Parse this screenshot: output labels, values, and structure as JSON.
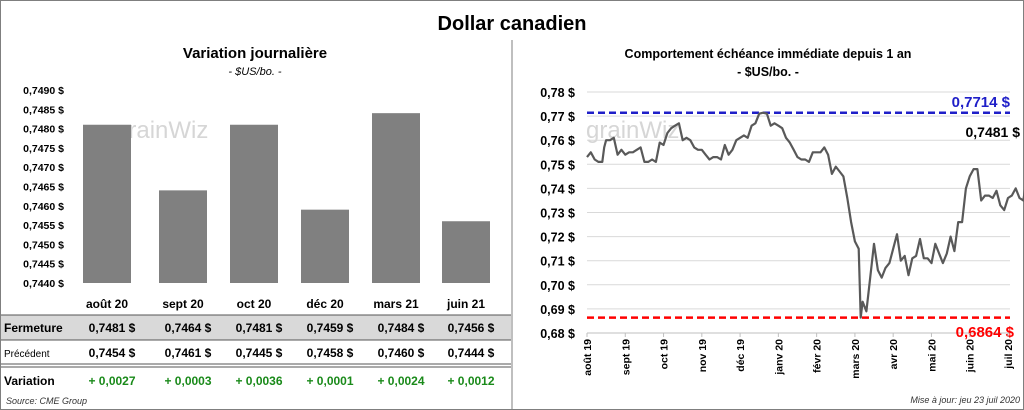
{
  "title": "Dollar canadien",
  "watermark": "grainWiz",
  "colors": {
    "bar": "#808080",
    "line": "#595959",
    "high": "#1f1fc8",
    "low": "#ff0000",
    "positive": "#1a8a1a",
    "table_band": "#d9d9d9"
  },
  "chart_data": [
    {
      "type": "bar",
      "title": "Variation  journalière",
      "subtitle": "- $US/bo. -",
      "ylim": [
        0.744,
        0.749
      ],
      "yticks": [
        "0,7440 $",
        "0,7445 $",
        "0,7450 $",
        "0,7455 $",
        "0,7460 $",
        "0,7465 $",
        "0,7470 $",
        "0,7475 $",
        "0,7480 $",
        "0,7485 $",
        "0,7490 $"
      ],
      "categories": [
        "août 20",
        "sept 20",
        "oct 20",
        "déc 20",
        "mars 21",
        "juin 21"
      ],
      "values": [
        0.7481,
        0.7464,
        0.7481,
        0.7459,
        0.7484,
        0.7456
      ]
    },
    {
      "type": "line",
      "title": "Comportement échéance immédiate depuis 1 an",
      "subtitle": "- $US/bo. -",
      "ylim": [
        0.68,
        0.78
      ],
      "yticks": [
        "0,68 $",
        "0,69 $",
        "0,70 $",
        "0,71 $",
        "0,72 $",
        "0,73 $",
        "0,74 $",
        "0,75 $",
        "0,76 $",
        "0,77 $",
        "0,78 $"
      ],
      "xticks": [
        "août 19",
        "sept 19",
        "oct 19",
        "nov 19",
        "déc 19",
        "janv 20",
        "févr 20",
        "mars 20",
        "avr 20",
        "mai 20",
        "juin 20",
        "juil 20"
      ],
      "x_unit": "months since août 19",
      "series": [
        {
          "name": "Dollar canadien",
          "points": [
            [
              0,
              0.753
            ],
            [
              0.1,
              0.755
            ],
            [
              0.2,
              0.752
            ],
            [
              0.3,
              0.751
            ],
            [
              0.4,
              0.751
            ],
            [
              0.45,
              0.757
            ],
            [
              0.5,
              0.76
            ],
            [
              0.6,
              0.76
            ],
            [
              0.7,
              0.761
            ],
            [
              0.8,
              0.754
            ],
            [
              0.9,
              0.756
            ],
            [
              1.0,
              0.754
            ],
            [
              1.1,
              0.755
            ],
            [
              1.2,
              0.755
            ],
            [
              1.3,
              0.756
            ],
            [
              1.4,
              0.757
            ],
            [
              1.5,
              0.751
            ],
            [
              1.6,
              0.751
            ],
            [
              1.7,
              0.752
            ],
            [
              1.8,
              0.751
            ],
            [
              1.9,
              0.759
            ],
            [
              2.0,
              0.758
            ],
            [
              2.1,
              0.763
            ],
            [
              2.2,
              0.765
            ],
            [
              2.3,
              0.766
            ],
            [
              2.4,
              0.767
            ],
            [
              2.5,
              0.76
            ],
            [
              2.6,
              0.761
            ],
            [
              2.7,
              0.76
            ],
            [
              2.8,
              0.757
            ],
            [
              2.9,
              0.756
            ],
            [
              3.0,
              0.756
            ],
            [
              3.1,
              0.754
            ],
            [
              3.2,
              0.752
            ],
            [
              3.3,
              0.753
            ],
            [
              3.4,
              0.753
            ],
            [
              3.5,
              0.752
            ],
            [
              3.6,
              0.758
            ],
            [
              3.7,
              0.754
            ],
            [
              3.8,
              0.756
            ],
            [
              3.9,
              0.76
            ],
            [
              4.0,
              0.761
            ],
            [
              4.1,
              0.762
            ],
            [
              4.2,
              0.761
            ],
            [
              4.3,
              0.766
            ],
            [
              4.4,
              0.767
            ],
            [
              4.5,
              0.771
            ],
            [
              4.6,
              0.7714
            ],
            [
              4.7,
              0.771
            ],
            [
              4.8,
              0.766
            ],
            [
              4.9,
              0.767
            ],
            [
              5.0,
              0.766
            ],
            [
              5.1,
              0.765
            ],
            [
              5.2,
              0.761
            ],
            [
              5.3,
              0.759
            ],
            [
              5.4,
              0.756
            ],
            [
              5.5,
              0.753
            ],
            [
              5.6,
              0.752
            ],
            [
              5.7,
              0.752
            ],
            [
              5.8,
              0.751
            ],
            [
              5.9,
              0.755
            ],
            [
              6.0,
              0.755
            ],
            [
              6.1,
              0.755
            ],
            [
              6.2,
              0.757
            ],
            [
              6.3,
              0.754
            ],
            [
              6.4,
              0.746
            ],
            [
              6.5,
              0.749
            ],
            [
              6.6,
              0.747
            ],
            [
              6.7,
              0.745
            ],
            [
              6.8,
              0.736
            ],
            [
              6.9,
              0.726
            ],
            [
              7.0,
              0.718
            ],
            [
              7.1,
              0.715
            ],
            [
              7.15,
              0.6864
            ],
            [
              7.2,
              0.693
            ],
            [
              7.3,
              0.689
            ],
            [
              7.4,
              0.703
            ],
            [
              7.5,
              0.717
            ],
            [
              7.6,
              0.706
            ],
            [
              7.7,
              0.703
            ],
            [
              7.8,
              0.707
            ],
            [
              7.9,
              0.709
            ],
            [
              8.0,
              0.715
            ],
            [
              8.1,
              0.721
            ],
            [
              8.2,
              0.71
            ],
            [
              8.3,
              0.712
            ],
            [
              8.4,
              0.704
            ],
            [
              8.5,
              0.711
            ],
            [
              8.6,
              0.712
            ],
            [
              8.7,
              0.719
            ],
            [
              8.8,
              0.711
            ],
            [
              8.9,
              0.711
            ],
            [
              9.0,
              0.709
            ],
            [
              9.1,
              0.717
            ],
            [
              9.2,
              0.713
            ],
            [
              9.3,
              0.709
            ],
            [
              9.4,
              0.713
            ],
            [
              9.5,
              0.72
            ],
            [
              9.6,
              0.714
            ],
            [
              9.7,
              0.726
            ],
            [
              9.8,
              0.726
            ],
            [
              9.9,
              0.74
            ],
            [
              10.0,
              0.745
            ],
            [
              10.1,
              0.748
            ],
            [
              10.2,
              0.748
            ],
            [
              10.3,
              0.735
            ],
            [
              10.4,
              0.737
            ],
            [
              10.5,
              0.737
            ],
            [
              10.6,
              0.736
            ],
            [
              10.7,
              0.739
            ],
            [
              10.8,
              0.733
            ],
            [
              10.9,
              0.731
            ],
            [
              11.0,
              0.736
            ],
            [
              11.1,
              0.737
            ],
            [
              11.2,
              0.74
            ],
            [
              11.3,
              0.736
            ],
            [
              11.4,
              0.735
            ],
            [
              11.45,
              0.74
            ],
            [
              11.5,
              0.737
            ],
            [
              11.6,
              0.739
            ],
            [
              11.65,
              0.745
            ],
            [
              11.7,
              0.7481
            ]
          ]
        }
      ],
      "high": {
        "value": 0.7714,
        "label": "0,7714 $"
      },
      "low": {
        "value": 0.6864,
        "label": "0,6864 $"
      },
      "last": {
        "value": 0.7481,
        "label": "0,7481 $"
      }
    }
  ],
  "table": {
    "rows": [
      {
        "label": "Fermeture",
        "values": [
          "0,7481  $",
          "0,7464  $",
          "0,7481  $",
          "0,7459  $",
          "0,7484  $",
          "0,7456  $"
        ]
      },
      {
        "label": "Précédent",
        "values": [
          "0,7454  $",
          "0,7461  $",
          "0,7445  $",
          "0,7458  $",
          "0,7460  $",
          "0,7444  $"
        ]
      },
      {
        "label": "Variation",
        "values": [
          "+ 0,0027",
          "+ 0,0003",
          "+ 0,0036",
          "+ 0,0001",
          "+ 0,0024",
          "+ 0,0012"
        ]
      }
    ]
  },
  "source": "Source: CME Group",
  "updated": "Mise à jour: jeu 23 juil 2020"
}
